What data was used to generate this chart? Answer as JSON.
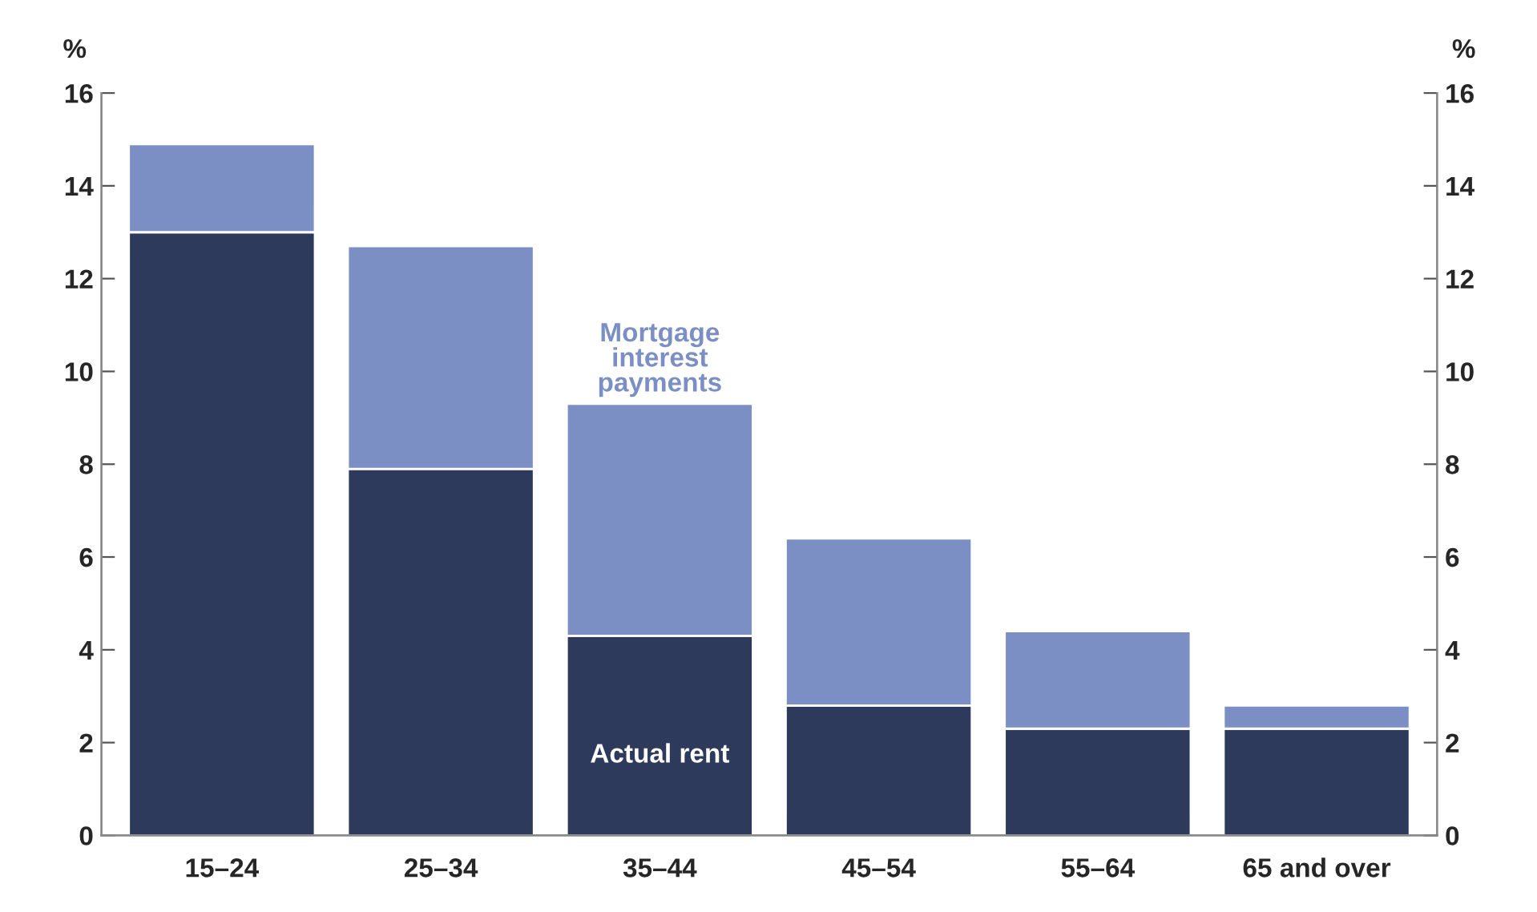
{
  "chart_data": {
    "type": "bar",
    "stacked": true,
    "categories": [
      "15–24",
      "25–34",
      "35–44",
      "45–54",
      "55–64",
      "65 and over"
    ],
    "series": [
      {
        "name": "Actual rent",
        "color": "#2e3a5c",
        "values": [
          13.0,
          7.9,
          4.3,
          2.8,
          2.3,
          2.3
        ]
      },
      {
        "name": "Mortgage interest payments",
        "color": "#7b8fc4",
        "values": [
          1.9,
          4.8,
          5.0,
          3.6,
          2.1,
          0.5
        ]
      }
    ],
    "ylabel": "%",
    "y2label": "%",
    "ylim": [
      0,
      16
    ],
    "yticks": [
      0,
      2,
      4,
      6,
      8,
      10,
      12,
      14,
      16
    ],
    "y2lim": [
      0,
      16
    ],
    "y2ticks": [
      0,
      2,
      4,
      6,
      8,
      10,
      12,
      14,
      16
    ],
    "grid": false,
    "legend": false
  }
}
